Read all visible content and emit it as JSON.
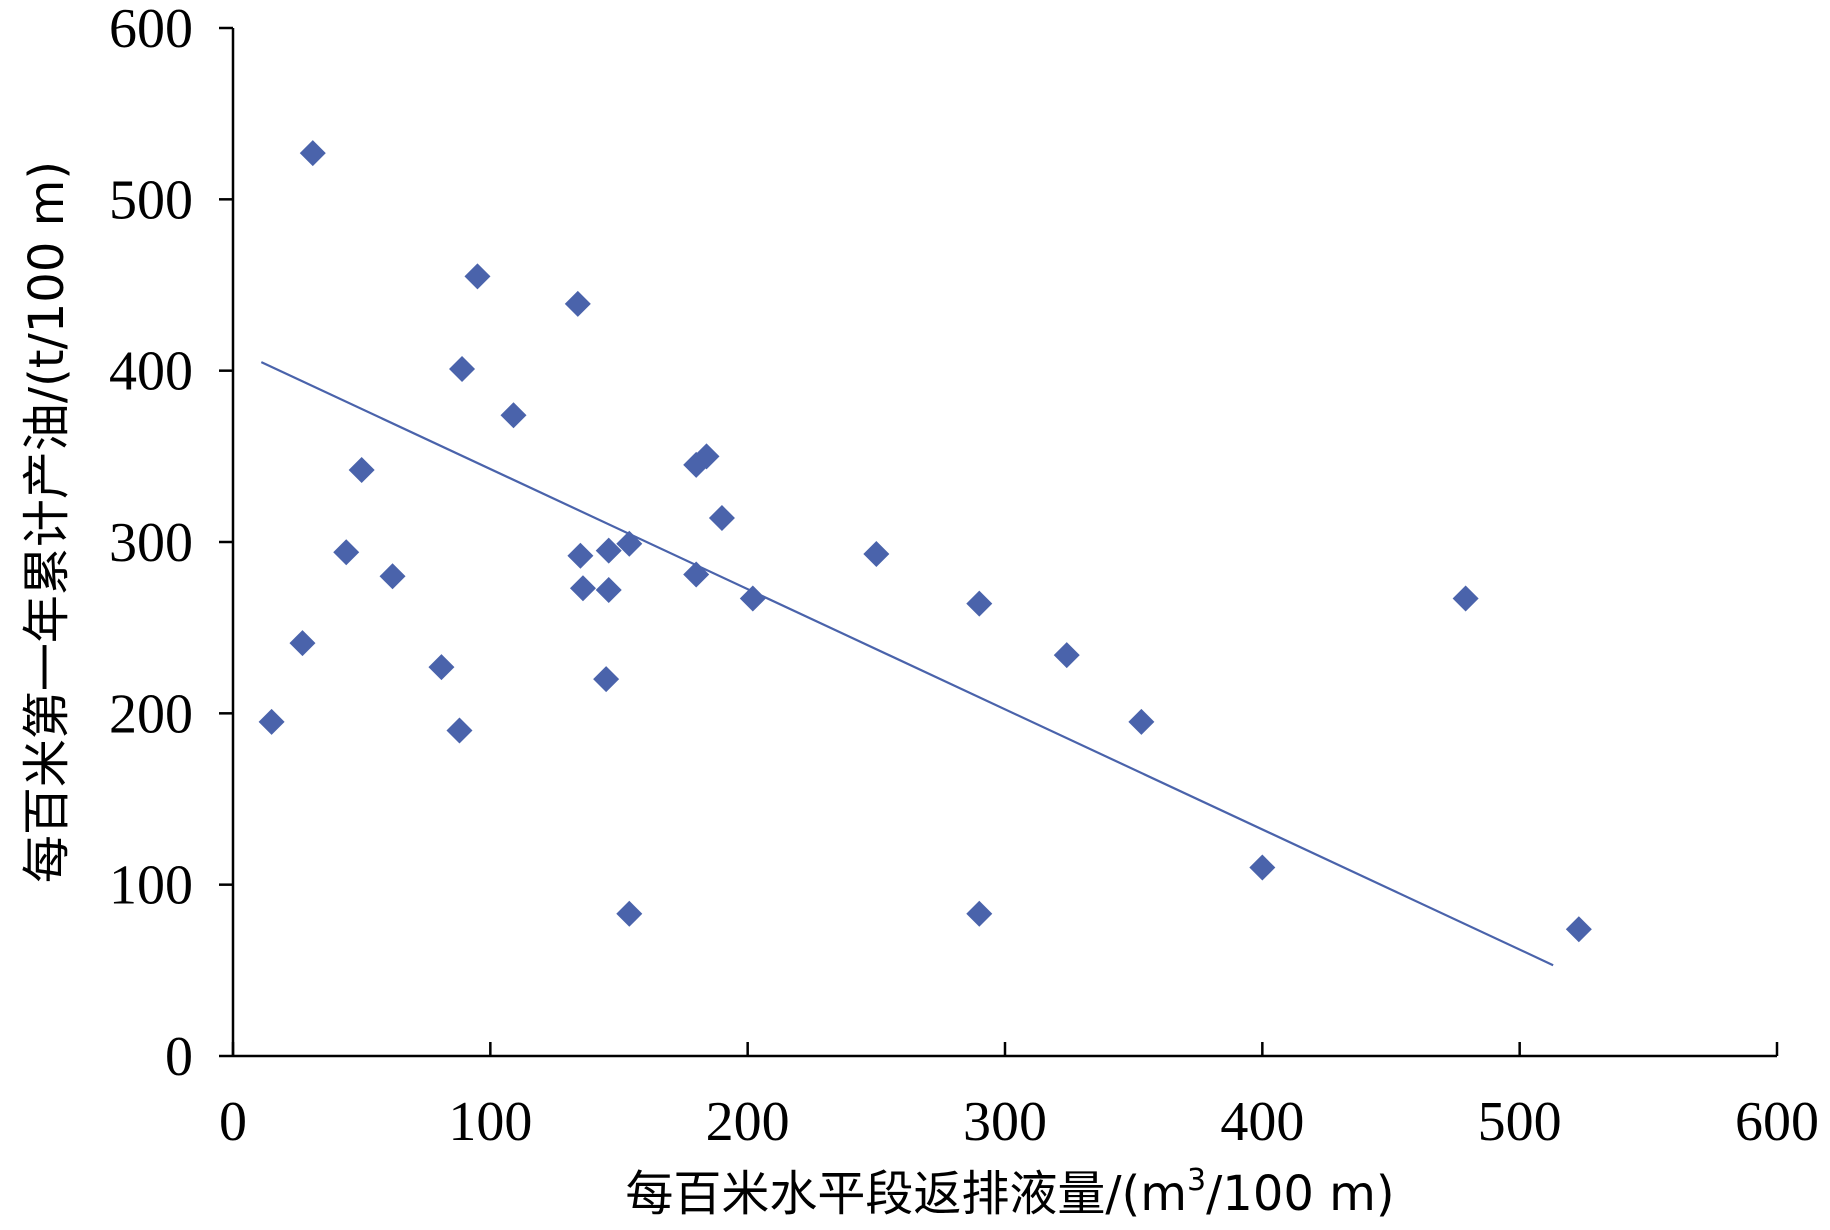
{
  "chart_data": {
    "type": "scatter",
    "title": "",
    "xlabel_text": "每百米水平段返排液量/(m",
    "xlabel_sup": "3",
    "xlabel_end": "/100 m)",
    "ylabel": "每百米第一年累计产油/(t/100 m)",
    "xlim": [
      0,
      600
    ],
    "ylim": [
      0,
      600
    ],
    "xticks": [
      "0",
      "100",
      "200",
      "300",
      "400",
      "500",
      "600"
    ],
    "yticks": [
      "0",
      "100",
      "200",
      "300",
      "400",
      "500",
      "600"
    ],
    "grid": false,
    "legend": "none",
    "marker_color": "#4a63ab",
    "line_color": "#4a63ab",
    "points": [
      {
        "x": 15,
        "y": 195
      },
      {
        "x": 27,
        "y": 241
      },
      {
        "x": 31,
        "y": 527
      },
      {
        "x": 44,
        "y": 294
      },
      {
        "x": 50,
        "y": 342
      },
      {
        "x": 62,
        "y": 280
      },
      {
        "x": 81,
        "y": 227
      },
      {
        "x": 88,
        "y": 190
      },
      {
        "x": 89,
        "y": 401
      },
      {
        "x": 95,
        "y": 455
      },
      {
        "x": 109,
        "y": 374
      },
      {
        "x": 134,
        "y": 439
      },
      {
        "x": 135,
        "y": 292
      },
      {
        "x": 136,
        "y": 273
      },
      {
        "x": 145,
        "y": 220
      },
      {
        "x": 146,
        "y": 295
      },
      {
        "x": 146,
        "y": 272
      },
      {
        "x": 154,
        "y": 83
      },
      {
        "x": 154,
        "y": 299
      },
      {
        "x": 180,
        "y": 345
      },
      {
        "x": 180,
        "y": 281
      },
      {
        "x": 184,
        "y": 350
      },
      {
        "x": 190,
        "y": 314
      },
      {
        "x": 202,
        "y": 267
      },
      {
        "x": 250,
        "y": 293
      },
      {
        "x": 290,
        "y": 264
      },
      {
        "x": 290,
        "y": 83
      },
      {
        "x": 324,
        "y": 234
      },
      {
        "x": 353,
        "y": 195
      },
      {
        "x": 400,
        "y": 110
      },
      {
        "x": 479,
        "y": 267
      },
      {
        "x": 523,
        "y": 74
      }
    ],
    "trendline": {
      "x": [
        11,
        513
      ],
      "y": [
        405,
        53
      ]
    }
  }
}
